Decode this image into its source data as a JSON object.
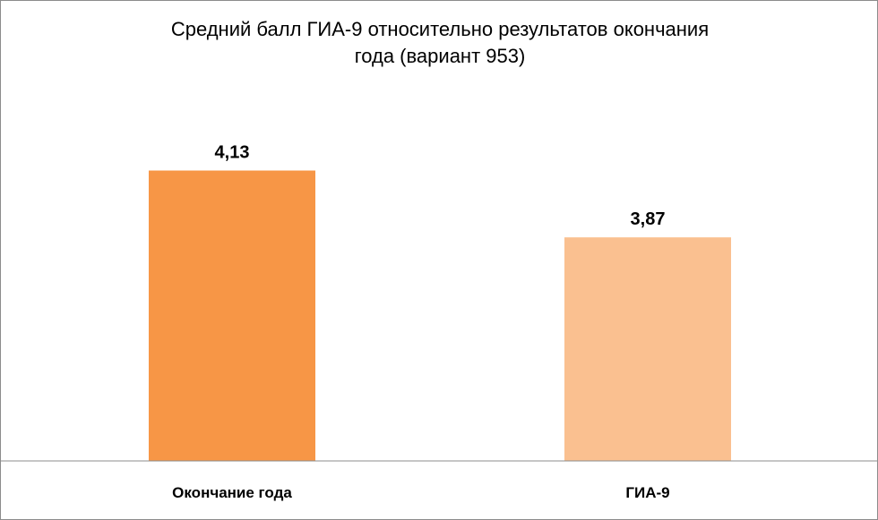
{
  "chart_data": {
    "type": "bar",
    "title": "Средний балл ГИА-9 относительно результатов окончания\nгода (вариант 953)",
    "categories": [
      "Окончание года",
      "ГИА-9"
    ],
    "values": [
      4.13,
      3.87
    ],
    "value_labels": [
      "4,13",
      "3,87"
    ],
    "bar_colors": [
      "#f79646",
      "#fac090"
    ],
    "xlabel": "",
    "ylabel": "",
    "ylim": [
      3.0,
      4.4
    ],
    "grid": false,
    "legend": "none"
  }
}
